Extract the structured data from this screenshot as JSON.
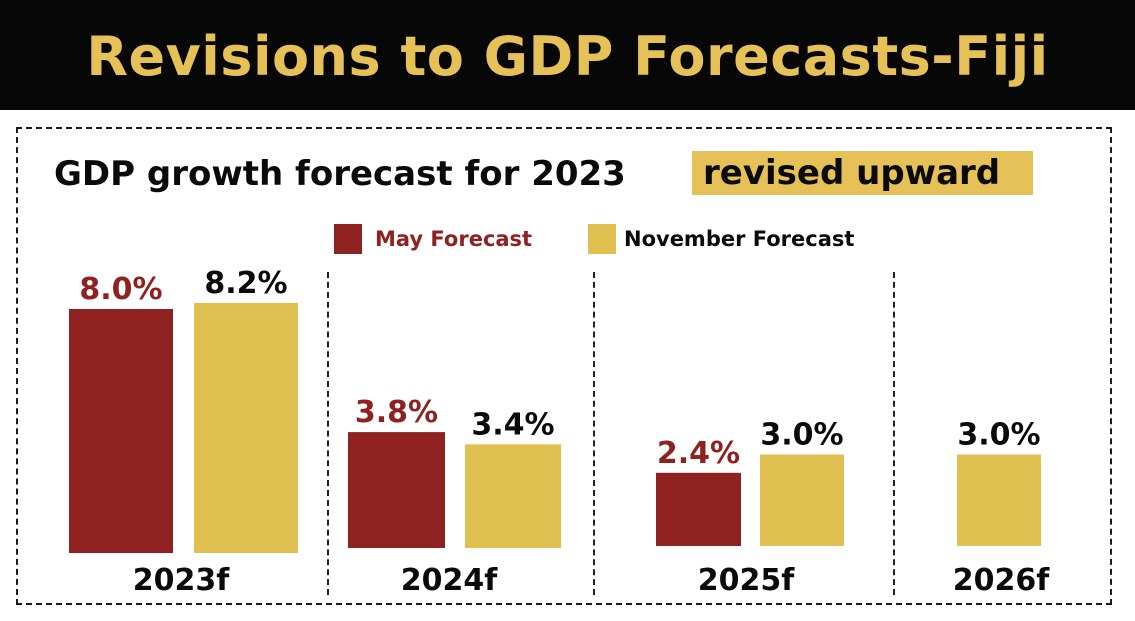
{
  "header": {
    "title": "Revisions to GDP Forecasts-Fiji"
  },
  "subtitle": {
    "text": "GDP growth forecast for 2023",
    "highlight": "revised upward"
  },
  "colors": {
    "may": "#8f2121",
    "november": "#e0c050",
    "header_bg": "#070707",
    "header_text": "#e6c157"
  },
  "chart_data": {
    "type": "bar",
    "categories": [
      "2023f",
      "2024f",
      "2025f",
      "2026f"
    ],
    "series": [
      {
        "name": "May Forecast",
        "values": [
          8.0,
          3.8,
          2.4,
          null
        ],
        "labels": [
          "8.0%",
          "3.8%",
          "2.4%",
          ""
        ]
      },
      {
        "name": "November Forecast",
        "values": [
          8.2,
          3.4,
          3.0,
          3.0
        ],
        "labels": [
          "8.2%",
          "3.4%",
          "3.0%",
          "3.0%"
        ]
      }
    ],
    "legend_position": "top",
    "grid": false
  }
}
